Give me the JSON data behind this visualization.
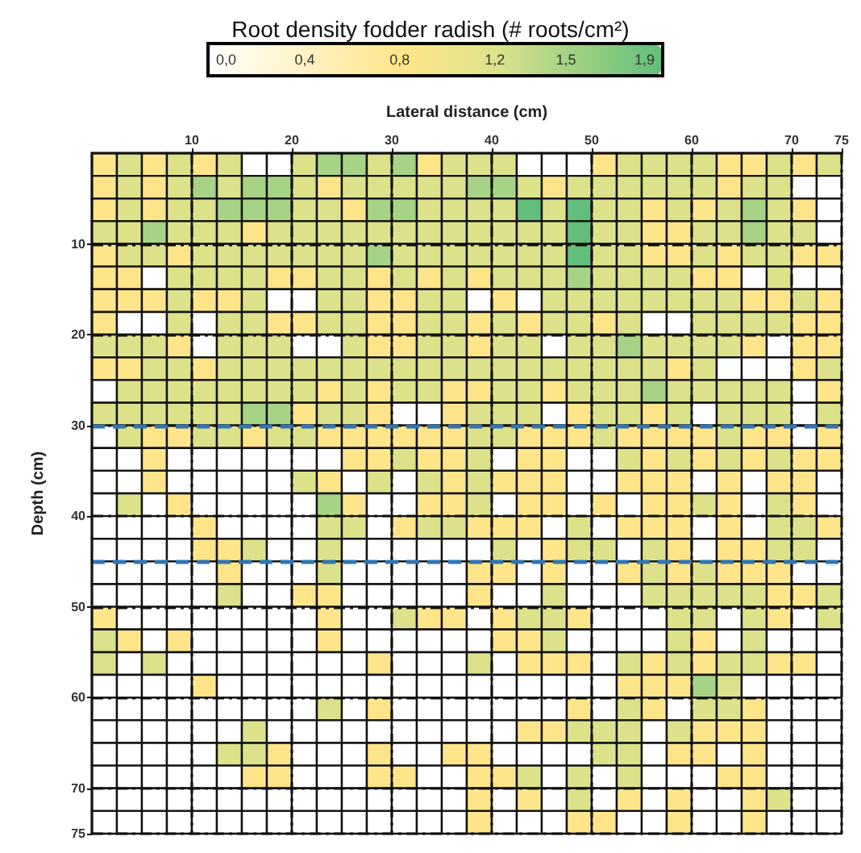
{
  "chart_data": {
    "type": "heatmap",
    "title": "Root density fodder radish (# roots/cm²)",
    "xlabel": "Lateral distance (cm)",
    "ylabel": "Depth (cm)",
    "x": [
      1.25,
      3.75,
      6.25,
      8.75,
      11.25,
      13.75,
      16.25,
      18.75,
      21.25,
      23.75,
      26.25,
      28.75,
      31.25,
      33.75,
      36.25,
      38.75,
      41.25,
      43.75,
      46.25,
      48.75,
      51.25,
      53.75,
      56.25,
      58.75,
      61.25,
      63.75,
      66.25,
      68.75,
      71.25,
      73.75
    ],
    "y": [
      1.25,
      3.75,
      6.25,
      8.75,
      11.25,
      13.75,
      16.25,
      18.75,
      21.25,
      23.75,
      26.25,
      28.75,
      31.25,
      33.75,
      36.25,
      38.75,
      41.25,
      43.75,
      46.25,
      48.75,
      51.25,
      53.75,
      56.25,
      58.75,
      61.25,
      63.75,
      66.25,
      68.75,
      71.25,
      73.75
    ],
    "xlim": [
      0,
      75
    ],
    "xticks": [
      10,
      20,
      30,
      40,
      50,
      60,
      70,
      75
    ],
    "ylim": [
      75,
      0
    ],
    "yticks": [
      10,
      20,
      30,
      40,
      50,
      60,
      70,
      75
    ],
    "grid": true,
    "clim": [
      0,
      1.9
    ],
    "cticks": [
      {
        "value": 0,
        "label": "0,0"
      },
      {
        "value": 0.4,
        "label": "0,4"
      },
      {
        "value": 0.8,
        "label": "0,8"
      },
      {
        "value": 1.2,
        "label": "1,2"
      },
      {
        "value": 1.5,
        "label": "1,5"
      },
      {
        "value": 1.9,
        "label": "1,9"
      }
    ],
    "colors": [
      "#ffffff",
      "#fff2c4",
      "#ffe58a",
      "#dde28a",
      "#a6d385",
      "#63be7b"
    ],
    "ref_lines": [
      {
        "axis": "y",
        "value": 30,
        "color": "#2e75b6",
        "line_style": "dashed"
      },
      {
        "axis": "y",
        "value": 45,
        "color": "#2e75b6",
        "line_style": "dashed"
      }
    ],
    "cells": [
      [
        0.8,
        1.2,
        0.8,
        1.2,
        0.8,
        1.2,
        0,
        0,
        1.2,
        1.5,
        1.5,
        1.2,
        1.5,
        0.8,
        1.2,
        1.2,
        1.2,
        0,
        0,
        0,
        0.8,
        1.2,
        1.2,
        1.2,
        1.2,
        0.8,
        0.8,
        1.2,
        0.8,
        1.2
      ],
      [
        0.8,
        1.2,
        0.8,
        1.2,
        1.5,
        1.2,
        1.5,
        1.5,
        1.2,
        0.8,
        1.2,
        1.2,
        1.2,
        1.2,
        1.2,
        1.5,
        1.5,
        1.2,
        0.8,
        1.2,
        1.2,
        1.2,
        1.2,
        1.2,
        1.2,
        0.8,
        1.2,
        1.2,
        0,
        0
      ],
      [
        0.8,
        1.2,
        0.8,
        1.2,
        1.2,
        1.5,
        1.5,
        1.5,
        1.2,
        1.2,
        0.8,
        1.5,
        1.5,
        1.2,
        1.2,
        1.2,
        1.2,
        1.9,
        1.2,
        1.9,
        1.2,
        1.2,
        0.8,
        1.2,
        0.8,
        1.2,
        1.5,
        1.2,
        0.8,
        0
      ],
      [
        1.2,
        1.2,
        1.5,
        1.2,
        1.2,
        1.2,
        0.8,
        1.2,
        1.2,
        1.2,
        1.2,
        1.2,
        1.2,
        1.2,
        1.2,
        1.2,
        1.2,
        1.2,
        1.2,
        1.9,
        1.2,
        1.2,
        0.8,
        0.8,
        1.2,
        1.2,
        1.5,
        1.2,
        1.2,
        0
      ],
      [
        0.8,
        1.2,
        1.2,
        0.8,
        1.2,
        1.2,
        1.2,
        1.2,
        1.2,
        1.2,
        1.2,
        1.5,
        1.2,
        1.2,
        1.2,
        1.2,
        1.2,
        1.2,
        1.2,
        1.9,
        1.2,
        1.2,
        0.8,
        0.8,
        1.2,
        0.8,
        1.2,
        1.2,
        0.8,
        0.8
      ],
      [
        0.8,
        0.8,
        0,
        1.2,
        1.2,
        1.2,
        1.2,
        0.8,
        0.8,
        1.2,
        1.2,
        0.8,
        1.2,
        0.8,
        1.2,
        0.8,
        1.2,
        1.2,
        1.2,
        1.5,
        1.2,
        1.2,
        1.2,
        1.2,
        0.8,
        0.8,
        0,
        1.2,
        0,
        0
      ],
      [
        0.8,
        0.8,
        0.8,
        1.2,
        0.8,
        0.8,
        1.2,
        0,
        0,
        1.2,
        1.2,
        0.8,
        0.8,
        1.2,
        1.2,
        0,
        0.8,
        0,
        1.2,
        1.2,
        1.2,
        1.2,
        1.2,
        1.2,
        1.2,
        1.2,
        0.8,
        0.8,
        1.2,
        0.8
      ],
      [
        0.8,
        0,
        0,
        1.2,
        0,
        1.2,
        1.2,
        0.8,
        0.8,
        1.2,
        1.2,
        0.8,
        0.8,
        1.2,
        1.2,
        0.8,
        1.2,
        0.8,
        1.2,
        1.2,
        0.8,
        1.2,
        0,
        0,
        1.2,
        1.2,
        1.2,
        1.2,
        0.8,
        0.8
      ],
      [
        1.2,
        1.2,
        1.2,
        0.8,
        0,
        1.2,
        1.2,
        1.2,
        0,
        0,
        1.2,
        0.8,
        0.8,
        1.2,
        1.2,
        0.8,
        1.2,
        1.2,
        0,
        1.2,
        1.2,
        1.5,
        1.2,
        1.2,
        1.2,
        1.2,
        0.8,
        0,
        0.8,
        0.8
      ],
      [
        0.8,
        0.8,
        1.2,
        1.2,
        0.8,
        1.2,
        1.2,
        1.2,
        1.2,
        1.2,
        1.2,
        1.2,
        1.2,
        1.2,
        1.2,
        1.2,
        1.2,
        1.2,
        1.2,
        1.2,
        1.2,
        1.2,
        1.2,
        0.8,
        1.2,
        0,
        0,
        0,
        0.8,
        1.2
      ],
      [
        0,
        1.2,
        1.2,
        1.2,
        1.2,
        1.2,
        1.2,
        1.2,
        1.2,
        0.8,
        1.2,
        0.8,
        1.2,
        1.2,
        0.8,
        0.8,
        1.2,
        1.2,
        0.8,
        1.2,
        1.2,
        1.2,
        1.5,
        1.2,
        1.2,
        1.2,
        1.2,
        1.2,
        0,
        0.8
      ],
      [
        1.2,
        1.2,
        1.2,
        1.2,
        1.2,
        1.2,
        1.5,
        1.5,
        0.8,
        1.2,
        1.2,
        0.8,
        0,
        0,
        0.8,
        1.2,
        1.2,
        1.2,
        0,
        0.8,
        1.2,
        1.2,
        0.8,
        1.2,
        0,
        1.2,
        1.2,
        1.2,
        0,
        1.2
      ],
      [
        0,
        1.2,
        0.8,
        0.8,
        1.2,
        1.2,
        0.8,
        1.2,
        1.2,
        0.8,
        0.8,
        0.8,
        0.8,
        0.8,
        0.8,
        1.2,
        1.2,
        0.8,
        0.8,
        0.8,
        1.2,
        0.8,
        0.8,
        0.8,
        0.8,
        1.2,
        0.8,
        0.8,
        0,
        0.8
      ],
      [
        0,
        0,
        0.8,
        0,
        0,
        0,
        0,
        0,
        0,
        0,
        0.8,
        0.8,
        1.2,
        0.8,
        0.8,
        1.2,
        0,
        0.8,
        0.8,
        0,
        0,
        1.2,
        0.8,
        1.2,
        0.8,
        1.2,
        0.8,
        1.2,
        0.8,
        0.8
      ],
      [
        0,
        0,
        0.8,
        0,
        0,
        0,
        0,
        0,
        1.2,
        0.8,
        0,
        1.2,
        0,
        1.2,
        0.8,
        1.2,
        0.8,
        0.8,
        0.8,
        0,
        0,
        0.8,
        0.8,
        0.8,
        0,
        0.8,
        0,
        0.8,
        0.8,
        0
      ],
      [
        0,
        1.2,
        0,
        0.8,
        0,
        0,
        0,
        0,
        0,
        1.5,
        0.8,
        0,
        0,
        0.8,
        0.8,
        1.2,
        0,
        0.8,
        0.8,
        0,
        0.8,
        0,
        0.8,
        0.8,
        1.2,
        0.8,
        0,
        1.2,
        0.8,
        0
      ],
      [
        0,
        0,
        0,
        0,
        0.8,
        0,
        0,
        0,
        0,
        1.2,
        1.2,
        0,
        0.8,
        1.2,
        1.2,
        0.8,
        0.8,
        0.8,
        0,
        1.2,
        0,
        0.8,
        0.8,
        0.8,
        0,
        0.8,
        0,
        1.2,
        1.2,
        0.8
      ],
      [
        0,
        0,
        0,
        0,
        0.8,
        0.8,
        1.2,
        0,
        0,
        1.2,
        0,
        0,
        0,
        0,
        0,
        0,
        1.2,
        0,
        0.8,
        1.2,
        1.2,
        0,
        1.2,
        0.8,
        0,
        0.8,
        0.8,
        1.2,
        1.2,
        0
      ],
      [
        0,
        0,
        0,
        0,
        0,
        0.8,
        0,
        0,
        0,
        1.2,
        0,
        0,
        0,
        0,
        0,
        0.8,
        0.8,
        0,
        0.8,
        0,
        0,
        0.8,
        1.2,
        0.8,
        1.2,
        0.8,
        0.8,
        0.8,
        0,
        0
      ],
      [
        0,
        0,
        0,
        0,
        0,
        1.2,
        0,
        0,
        0.8,
        0.8,
        0,
        0,
        0,
        0,
        0,
        0.8,
        0,
        0,
        1.2,
        0,
        0,
        0,
        1.2,
        1.2,
        1.2,
        1.2,
        1.2,
        0.8,
        0.8,
        1.2
      ],
      [
        0.8,
        0,
        0,
        0,
        0,
        0,
        0,
        0,
        0,
        0.8,
        0,
        0,
        1.2,
        0.8,
        0.8,
        0,
        0.8,
        1.2,
        1.2,
        0.8,
        0,
        0,
        0,
        1.2,
        1.2,
        0,
        1.2,
        0.8,
        0,
        1.2
      ],
      [
        1.2,
        0.8,
        0,
        0.8,
        0,
        0,
        0,
        0,
        0,
        0.8,
        0,
        0,
        0,
        0,
        0,
        0,
        0.8,
        0.8,
        1.2,
        0,
        0,
        0,
        0,
        1.2,
        0.8,
        0,
        1.2,
        0,
        0,
        0
      ],
      [
        1.2,
        0,
        1.2,
        0,
        0,
        0,
        0,
        0,
        0,
        0,
        0,
        0.8,
        0,
        0,
        0,
        1.2,
        0,
        0.8,
        0.8,
        0.8,
        0,
        1.2,
        0.8,
        1.2,
        0.8,
        1.2,
        1.2,
        0.8,
        0.8,
        0
      ],
      [
        0,
        0,
        0,
        0,
        0.8,
        0,
        0,
        0,
        0,
        0,
        0,
        0,
        0,
        0,
        0,
        0,
        0,
        0,
        0,
        0,
        0,
        0.8,
        0.8,
        0.8,
        1.5,
        1.2,
        0,
        0,
        0,
        0
      ],
      [
        0,
        0,
        0,
        0,
        0,
        0,
        0,
        0,
        0,
        1.2,
        0,
        0.8,
        0,
        0,
        0,
        0,
        0,
        0,
        0,
        0.8,
        0,
        1.2,
        0.8,
        0,
        1.2,
        1.2,
        0.8,
        0,
        0,
        0
      ],
      [
        0,
        0,
        0,
        0,
        0,
        0,
        1.2,
        0,
        0,
        0,
        0,
        0,
        0,
        0,
        0,
        0,
        0,
        0.8,
        0.8,
        1.2,
        1.2,
        1.2,
        0,
        1.2,
        0.8,
        0.8,
        0.8,
        0,
        0,
        0
      ],
      [
        0,
        0,
        0,
        0,
        0,
        1.2,
        1.2,
        0.8,
        0,
        0,
        0,
        0.8,
        0,
        0,
        0.8,
        0.8,
        0,
        0,
        0,
        0,
        1.2,
        1.2,
        0,
        0.8,
        0.8,
        0,
        0.8,
        0,
        0,
        0
      ],
      [
        0,
        0,
        0,
        0,
        0,
        0,
        0.8,
        0.8,
        0,
        0,
        0,
        0.8,
        0.8,
        0,
        0,
        0.8,
        0.8,
        1.2,
        0,
        1.2,
        0,
        1.2,
        0,
        0,
        0,
        0.8,
        0.8,
        0,
        0,
        0
      ],
      [
        0,
        0,
        0,
        0,
        0,
        0,
        0,
        0,
        0,
        0,
        0,
        0,
        0,
        0,
        0,
        0.8,
        0,
        0.8,
        0,
        1.2,
        0,
        0.8,
        0,
        0.8,
        0,
        0,
        0.8,
        1.2,
        0,
        0
      ],
      [
        0,
        0,
        0,
        0,
        0,
        0,
        0,
        0,
        0,
        0,
        0,
        0,
        0,
        0,
        0,
        0.8,
        0,
        0,
        0,
        0.8,
        0.8,
        0,
        0,
        0.8,
        0,
        0,
        0.8,
        0,
        0,
        0
      ]
    ]
  }
}
